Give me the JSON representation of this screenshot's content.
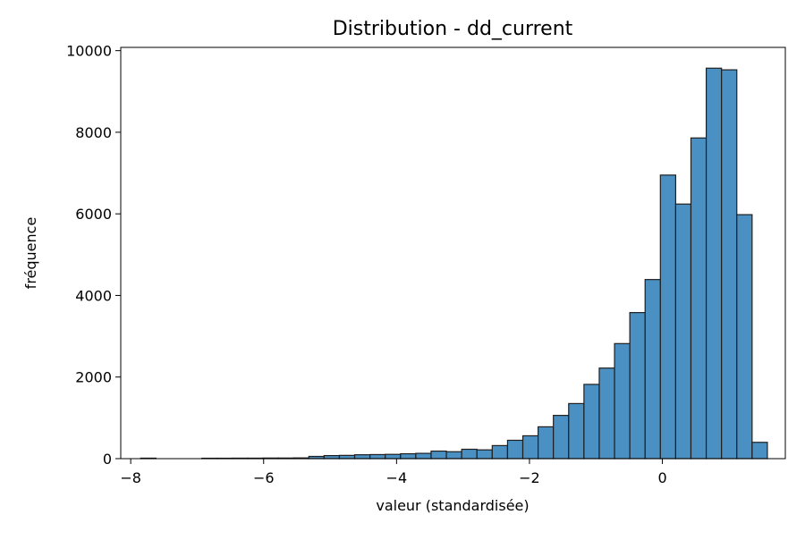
{
  "chart_data": {
    "type": "bar",
    "subtype": "histogram",
    "title": "Distribution - dd_current",
    "xlabel": "valeur (standardisée)",
    "ylabel": "fréquence",
    "xlim": [
      -8.15,
      1.85
    ],
    "ylim": [
      0,
      10080
    ],
    "xticks": [
      -8,
      -6,
      -4,
      -2,
      0
    ],
    "xtick_labels": [
      "−8",
      "−6",
      "−4",
      "−2",
      "0"
    ],
    "yticks": [
      0,
      2000,
      4000,
      6000,
      8000,
      10000
    ],
    "ytick_labels": [
      "0",
      "2000",
      "4000",
      "6000",
      "8000",
      "10000"
    ],
    "grid": false,
    "bar_color": "#4a90c2",
    "edge_color": "#1f1f1f",
    "bins": [
      {
        "x0": -7.85,
        "x1": -7.62,
        "value": 12
      },
      {
        "x0": -7.62,
        "x1": -7.39,
        "value": 0
      },
      {
        "x0": -7.39,
        "x1": -7.16,
        "value": 0
      },
      {
        "x0": -7.16,
        "x1": -6.93,
        "value": 0
      },
      {
        "x0": -6.93,
        "x1": -6.7,
        "value": 10
      },
      {
        "x0": -6.7,
        "x1": -6.47,
        "value": 10
      },
      {
        "x0": -6.47,
        "x1": -6.24,
        "value": 12
      },
      {
        "x0": -6.24,
        "x1": -6.01,
        "value": 12
      },
      {
        "x0": -6.01,
        "x1": -5.78,
        "value": 15
      },
      {
        "x0": -5.78,
        "x1": -5.55,
        "value": 15
      },
      {
        "x0": -5.55,
        "x1": -5.32,
        "value": 18
      },
      {
        "x0": -5.32,
        "x1": -5.09,
        "value": 55
      },
      {
        "x0": -5.09,
        "x1": -4.86,
        "value": 75
      },
      {
        "x0": -4.86,
        "x1": -4.63,
        "value": 80
      },
      {
        "x0": -4.63,
        "x1": -4.4,
        "value": 95
      },
      {
        "x0": -4.4,
        "x1": -4.17,
        "value": 100
      },
      {
        "x0": -4.17,
        "x1": -3.94,
        "value": 105
      },
      {
        "x0": -3.94,
        "x1": -3.71,
        "value": 120
      },
      {
        "x0": -3.71,
        "x1": -3.48,
        "value": 130
      },
      {
        "x0": -3.48,
        "x1": -3.25,
        "value": 185
      },
      {
        "x0": -3.25,
        "x1": -3.02,
        "value": 170
      },
      {
        "x0": -3.02,
        "x1": -2.79,
        "value": 230
      },
      {
        "x0": -2.79,
        "x1": -2.56,
        "value": 215
      },
      {
        "x0": -2.56,
        "x1": -2.33,
        "value": 320
      },
      {
        "x0": -2.33,
        "x1": -2.1,
        "value": 450
      },
      {
        "x0": -2.1,
        "x1": -1.87,
        "value": 560
      },
      {
        "x0": -1.87,
        "x1": -1.64,
        "value": 780
      },
      {
        "x0": -1.64,
        "x1": -1.41,
        "value": 1060
      },
      {
        "x0": -1.41,
        "x1": -1.18,
        "value": 1350
      },
      {
        "x0": -1.18,
        "x1": -0.95,
        "value": 1820
      },
      {
        "x0": -0.95,
        "x1": -0.72,
        "value": 2220
      },
      {
        "x0": -0.72,
        "x1": -0.49,
        "value": 2820
      },
      {
        "x0": -0.49,
        "x1": -0.26,
        "value": 3580
      },
      {
        "x0": -0.26,
        "x1": -0.03,
        "value": 4390
      },
      {
        "x0": -0.03,
        "x1": 0.2,
        "value": 6950
      },
      {
        "x0": 0.2,
        "x1": 0.43,
        "value": 6240
      },
      {
        "x0": 0.43,
        "x1": 0.66,
        "value": 7860
      },
      {
        "x0": 0.66,
        "x1": 0.89,
        "value": 9570
      },
      {
        "x0": 0.89,
        "x1": 1.12,
        "value": 9530
      },
      {
        "x0": 1.12,
        "x1": 1.35,
        "value": 5980
      },
      {
        "x0": 1.35,
        "x1": 1.58,
        "value": 400
      }
    ]
  }
}
